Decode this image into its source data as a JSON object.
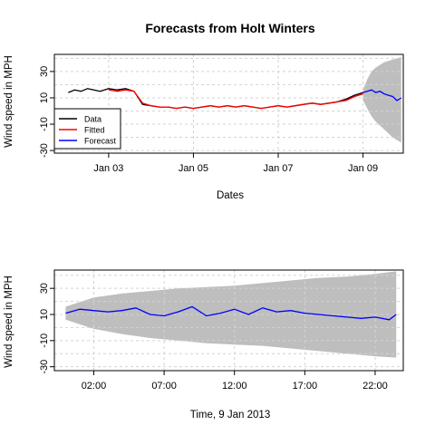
{
  "title": "Forecasts from Holt Winters",
  "colors": {
    "data": "#000000",
    "fitted": "#ff0000",
    "forecast": "#0000ff",
    "interval": "#bebebe",
    "grid": "#d3d3d3"
  },
  "chart_data": [
    {
      "type": "line",
      "title": "Forecasts from Holt Winters",
      "xlabel": "Dates",
      "ylabel": "Wind speed in MPH",
      "x_unit": "days since Jan 01",
      "xlim": [
        1.72,
        9.95
      ],
      "ylim": [
        -32,
        43
      ],
      "y_ticks": [
        -30,
        -10,
        10,
        30
      ],
      "y_tick_labels": [
        "-30",
        "-10",
        "10",
        "30"
      ],
      "x_ticks": [
        3,
        5,
        7,
        9
      ],
      "x_tick_labels": [
        "Jan 03",
        "Jan 05",
        "Jan 07",
        "Jan 09"
      ],
      "grid": true,
      "legend": {
        "position": "bottom-left",
        "entries": [
          {
            "label": "Data",
            "color": "#000000"
          },
          {
            "label": "Fitted",
            "color": "#ff0000"
          },
          {
            "label": "Forecast",
            "color": "#0000ff"
          }
        ]
      },
      "series": [
        {
          "name": "Data",
          "x": [
            2.05,
            2.2,
            2.35,
            2.5,
            2.65,
            2.8,
            3.0,
            3.2,
            3.4,
            3.6,
            3.8,
            4.0,
            4.2,
            4.4,
            4.6,
            4.8,
            5.0,
            5.2,
            5.4,
            5.6,
            5.8,
            6.0,
            6.2,
            6.4,
            6.6,
            6.8,
            7.0,
            7.2,
            7.4,
            7.6,
            7.8,
            8.0,
            8.2,
            8.4,
            8.6,
            8.8,
            9.0
          ],
          "y": [
            14,
            16,
            15,
            17,
            16,
            15,
            17,
            16,
            17,
            15,
            5,
            4,
            3,
            3,
            2,
            3,
            2,
            3,
            4,
            3,
            4,
            3,
            4,
            3,
            2,
            3,
            4,
            3,
            4,
            5,
            6,
            5,
            6,
            7,
            9,
            12,
            14
          ]
        },
        {
          "name": "Fitted",
          "x": [
            3.0,
            3.2,
            3.4,
            3.6,
            3.8,
            4.0,
            4.2,
            4.4,
            4.6,
            4.8,
            5.0,
            5.2,
            5.4,
            5.6,
            5.8,
            6.0,
            6.2,
            6.4,
            6.6,
            6.8,
            7.0,
            7.2,
            7.4,
            7.6,
            7.8,
            8.0,
            8.2,
            8.4,
            8.6,
            8.8,
            9.0
          ],
          "y": [
            16,
            15,
            16,
            15,
            6,
            4,
            3,
            3,
            2,
            3,
            2,
            3,
            4,
            3,
            4,
            3,
            4,
            3,
            2,
            3,
            4,
            3,
            4,
            5,
            6,
            5,
            6,
            7,
            8,
            11,
            13
          ]
        },
        {
          "name": "Forecast",
          "x": [
            9.0,
            9.1,
            9.2,
            9.3,
            9.4,
            9.5,
            9.6,
            9.7,
            9.8,
            9.9
          ],
          "y": [
            14,
            15,
            16,
            14,
            15,
            13,
            12,
            11,
            8,
            10
          ]
        }
      ],
      "interval": {
        "x": [
          9.0,
          9.1,
          9.2,
          9.3,
          9.4,
          9.5,
          9.6,
          9.7,
          9.8,
          9.9
        ],
        "upper": [
          16,
          24,
          30,
          33,
          35,
          37,
          38,
          39,
          40,
          41
        ],
        "lower": [
          8,
          2,
          -4,
          -8,
          -11,
          -14,
          -17,
          -20,
          -22,
          -24
        ]
      }
    },
    {
      "type": "line",
      "xlabel": "Time, 9 Jan 2013",
      "ylabel": "Wind speed in MPH",
      "x_unit": "hours",
      "xlim": [
        -0.8,
        24.0
      ],
      "ylim": [
        -33,
        44
      ],
      "y_ticks": [
        -30,
        -10,
        10,
        30
      ],
      "y_tick_labels": [
        "-30",
        "-10",
        "10",
        "30"
      ],
      "x_ticks": [
        2,
        7,
        12,
        17,
        22
      ],
      "x_tick_labels": [
        "02:00",
        "07:00",
        "12:00",
        "17:00",
        "22:00"
      ],
      "grid": true,
      "series": [
        {
          "name": "Forecast",
          "x": [
            0,
            1,
            2,
            3,
            4,
            5,
            6,
            7,
            8,
            9,
            10,
            11,
            12,
            13,
            14,
            15,
            16,
            17,
            18,
            19,
            20,
            21,
            22,
            23,
            23.5
          ],
          "y": [
            11,
            14,
            13,
            12,
            13,
            15,
            10,
            9,
            12,
            16,
            9,
            11,
            14,
            10,
            15,
            12,
            13,
            11,
            10,
            9,
            8,
            7,
            8,
            6,
            10
          ]
        }
      ],
      "interval": {
        "x": [
          0,
          2,
          4,
          6,
          8,
          10,
          12,
          14,
          16,
          18,
          20,
          22,
          23.5
        ],
        "upper": [
          16,
          23,
          26,
          28,
          30,
          31,
          32,
          34,
          36,
          38,
          39,
          41,
          43
        ],
        "lower": [
          6,
          -1,
          -5,
          -8,
          -10,
          -12,
          -13,
          -14,
          -16,
          -18,
          -20,
          -22,
          -23
        ]
      }
    }
  ]
}
